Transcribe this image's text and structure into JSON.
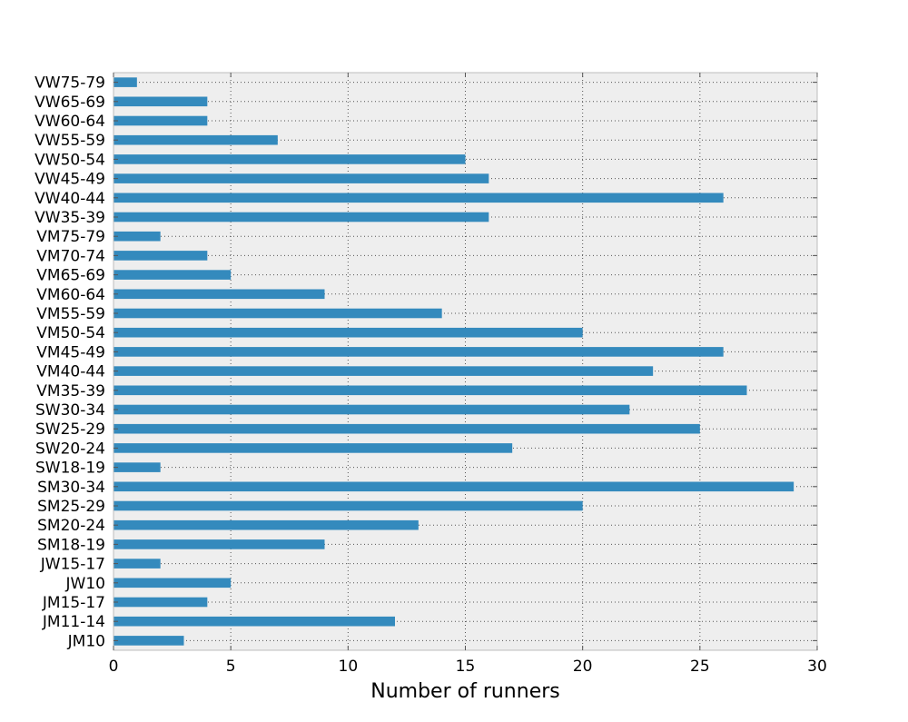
{
  "chart_data": {
    "type": "bar",
    "orientation": "horizontal",
    "title": "",
    "xlabel": "Number of runners",
    "ylabel": "",
    "xlim": [
      0,
      30
    ],
    "xticks": [
      0,
      5,
      10,
      15,
      20,
      25,
      30
    ],
    "grid": true,
    "colors": {
      "bar": "#348abd",
      "plot_background": "#eeeeee",
      "grid": "#555555",
      "axes_border": "#bcbcbc"
    },
    "categories": [
      "JM10",
      "JM11-14",
      "JM15-17",
      "JW10",
      "JW15-17",
      "SM18-19",
      "SM20-24",
      "SM25-29",
      "SM30-34",
      "SW18-19",
      "SW20-24",
      "SW25-29",
      "SW30-34",
      "VM35-39",
      "VM40-44",
      "VM45-49",
      "VM50-54",
      "VM55-59",
      "VM60-64",
      "VM65-69",
      "VM70-74",
      "VM75-79",
      "VW35-39",
      "VW40-44",
      "VW45-49",
      "VW50-54",
      "VW55-59",
      "VW60-64",
      "VW65-69",
      "VW75-79"
    ],
    "values": [
      3,
      12,
      4,
      5,
      2,
      9,
      13,
      20,
      29,
      2,
      17,
      25,
      22,
      27,
      23,
      26,
      20,
      14,
      9,
      5,
      4,
      2,
      16,
      26,
      16,
      15,
      7,
      4,
      4,
      1
    ]
  }
}
